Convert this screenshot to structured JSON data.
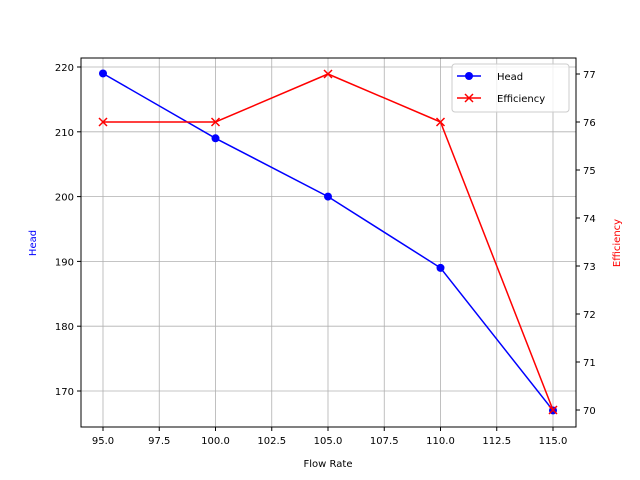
{
  "chart_data": {
    "type": "line",
    "title": "",
    "xlabel": "Flow Rate",
    "ylabel": "Head",
    "y2label": "Efficiency",
    "x": [
      95,
      100,
      105,
      110,
      115
    ],
    "xlim": [
      94,
      116
    ],
    "ylim": [
      164.5,
      221.5
    ],
    "y2lim": [
      69.7,
      77.3
    ],
    "grid": true,
    "legend_position": "upper right",
    "x_ticks": [
      "95.0",
      "97.5",
      "100.0",
      "102.5",
      "105.0",
      "107.5",
      "110.0",
      "112.5",
      "115.0"
    ],
    "y_ticks": [
      "170",
      "180",
      "190",
      "200",
      "210",
      "220"
    ],
    "y2_ticks": [
      "70",
      "71",
      "72",
      "73",
      "74",
      "75",
      "76",
      "77"
    ],
    "series": [
      {
        "name": "Head",
        "axis": "left",
        "color": "#0000ff",
        "marker": "circle",
        "values": [
          219,
          209,
          200,
          189,
          167
        ]
      },
      {
        "name": "Efficiency",
        "axis": "right",
        "color": "#ff0000",
        "marker": "x",
        "values": [
          76,
          76,
          77,
          76,
          70
        ]
      }
    ]
  },
  "legend": {
    "items": [
      {
        "label": "Head"
      },
      {
        "label": "Efficiency"
      }
    ]
  }
}
